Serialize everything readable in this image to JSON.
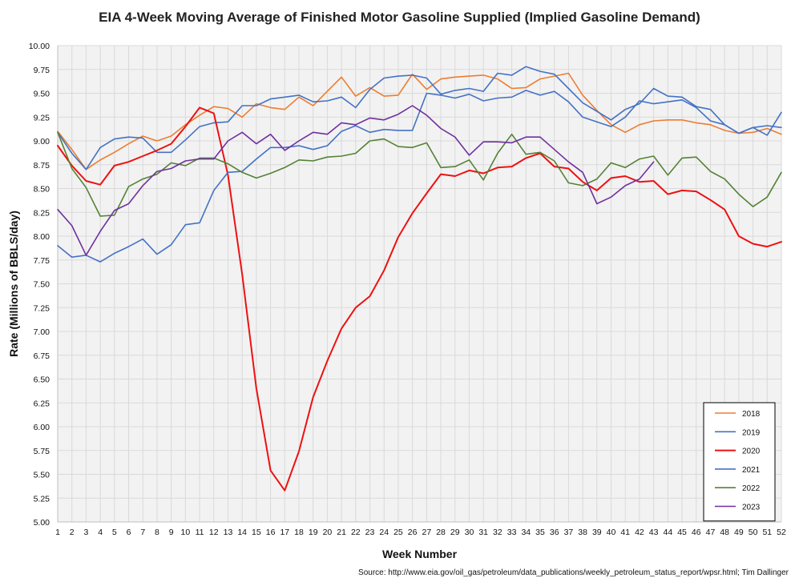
{
  "chart_data": {
    "type": "line",
    "title": "EIA 4-Week Moving Average of Finished Motor Gasoline Supplied (Implied Gasoline Demand)",
    "xlabel": "Week Number",
    "ylabel": "Rate (Millions of BBLS/day)",
    "source": "Source: http://www.eia.gov/oil_gas/petroleum/data_publications/weekly_petroleum_status_report/wpsr.html; Tim Dallinger",
    "xlim": [
      1,
      52
    ],
    "ylim": [
      5.0,
      10.0
    ],
    "ytick_step": 0.25,
    "grid": true,
    "legend_position": "bottom-right",
    "x": [
      1,
      2,
      3,
      4,
      5,
      6,
      7,
      8,
      9,
      10,
      11,
      12,
      13,
      14,
      15,
      16,
      17,
      18,
      19,
      20,
      21,
      22,
      23,
      24,
      25,
      26,
      27,
      28,
      29,
      30,
      31,
      32,
      33,
      34,
      35,
      36,
      37,
      38,
      39,
      40,
      41,
      42,
      43,
      44,
      45,
      46,
      47,
      48,
      49,
      50,
      51,
      52
    ],
    "series": [
      {
        "name": "2018",
        "color": "#ED7D31",
        "values": [
          9.1,
          8.91,
          8.7,
          8.8,
          8.88,
          8.97,
          9.05,
          9.0,
          9.05,
          9.17,
          9.27,
          9.36,
          9.34,
          9.25,
          9.39,
          9.35,
          9.33,
          9.46,
          9.37,
          9.52,
          9.67,
          9.47,
          9.56,
          9.47,
          9.48,
          9.7,
          9.54,
          9.65,
          9.67,
          9.68,
          9.69,
          9.65,
          9.55,
          9.56,
          9.65,
          9.68,
          9.71,
          9.48,
          9.32,
          9.17,
          9.09,
          9.17,
          9.21,
          9.22,
          9.22,
          9.19,
          9.17,
          9.11,
          9.08,
          9.09,
          9.13,
          9.07
        ]
      },
      {
        "name": "2019",
        "color": "#4472C4",
        "values": [
          9.09,
          8.87,
          8.7,
          8.93,
          9.02,
          9.04,
          9.03,
          8.88,
          8.88,
          9.01,
          9.15,
          9.19,
          9.2,
          9.37,
          9.37,
          9.44,
          9.46,
          9.48,
          9.41,
          9.42,
          9.46,
          9.35,
          9.54,
          9.66,
          9.68,
          9.69,
          9.66,
          9.49,
          9.53,
          9.55,
          9.52,
          9.71,
          9.69,
          9.78,
          9.73,
          9.7,
          9.55,
          9.4,
          9.31,
          9.22,
          9.33,
          9.39,
          9.55,
          9.47,
          9.46,
          9.36,
          9.33,
          9.17,
          9.08,
          9.14,
          9.06,
          9.3
        ]
      },
      {
        "name": "2020",
        "color": "#EE1111",
        "values": [
          8.95,
          8.74,
          8.58,
          8.54,
          8.74,
          8.78,
          8.84,
          8.9,
          8.97,
          9.15,
          9.35,
          9.29,
          8.64,
          7.6,
          6.4,
          5.54,
          5.33,
          5.74,
          6.31,
          6.69,
          7.03,
          7.25,
          7.37,
          7.64,
          7.99,
          8.24,
          8.45,
          8.65,
          8.63,
          8.69,
          8.66,
          8.72,
          8.73,
          8.82,
          8.87,
          8.73,
          8.71,
          8.57,
          8.48,
          8.61,
          8.63,
          8.57,
          8.58,
          8.44,
          8.48,
          8.47,
          8.38,
          8.28,
          8.0,
          7.92,
          7.89,
          7.94
        ]
      },
      {
        "name": "2021",
        "color": "#4472C4",
        "values": [
          7.9,
          7.78,
          7.8,
          7.73,
          7.82,
          7.89,
          7.97,
          7.81,
          7.91,
          8.12,
          8.14,
          8.48,
          8.67,
          8.68,
          8.81,
          8.93,
          8.93,
          8.95,
          8.91,
          8.95,
          9.1,
          9.16,
          9.09,
          9.12,
          9.11,
          9.11,
          9.5,
          9.48,
          9.45,
          9.49,
          9.42,
          9.45,
          9.46,
          9.53,
          9.48,
          9.52,
          9.41,
          9.25,
          9.2,
          9.15,
          9.25,
          9.42,
          9.39,
          9.41,
          9.43,
          9.35,
          9.21,
          9.17,
          9.08,
          9.14,
          9.16,
          9.14
        ]
      },
      {
        "name": "2022",
        "color": "#548235",
        "values": [
          9.09,
          8.71,
          8.51,
          8.21,
          8.22,
          8.52,
          8.6,
          8.65,
          8.77,
          8.74,
          8.82,
          8.82,
          8.76,
          8.67,
          8.61,
          8.66,
          8.72,
          8.8,
          8.79,
          8.83,
          8.84,
          8.87,
          9.0,
          9.02,
          8.94,
          8.93,
          8.98,
          8.72,
          8.73,
          8.8,
          8.59,
          8.87,
          9.07,
          8.86,
          8.88,
          8.79,
          8.56,
          8.53,
          8.6,
          8.77,
          8.72,
          8.81,
          8.84,
          8.64,
          8.82,
          8.83,
          8.68,
          8.6,
          8.44,
          8.31,
          8.41,
          8.67
        ]
      },
      {
        "name": "2023",
        "color": "#7030A0",
        "values": [
          8.28,
          8.11,
          7.8,
          8.05,
          8.27,
          8.34,
          8.53,
          8.68,
          8.71,
          8.79,
          8.81,
          8.81,
          9.0,
          9.09,
          8.97,
          9.07,
          8.9,
          9.0,
          9.09,
          9.07,
          9.19,
          9.17,
          9.24,
          9.22,
          9.28,
          9.37,
          9.27,
          9.13,
          9.04,
          8.85,
          8.99,
          8.99,
          8.98,
          9.04,
          9.04,
          8.91,
          8.78,
          8.67,
          8.34,
          8.41,
          8.53,
          8.6,
          8.78,
          null,
          null,
          null,
          null,
          null,
          null,
          null,
          null,
          null
        ]
      }
    ]
  }
}
